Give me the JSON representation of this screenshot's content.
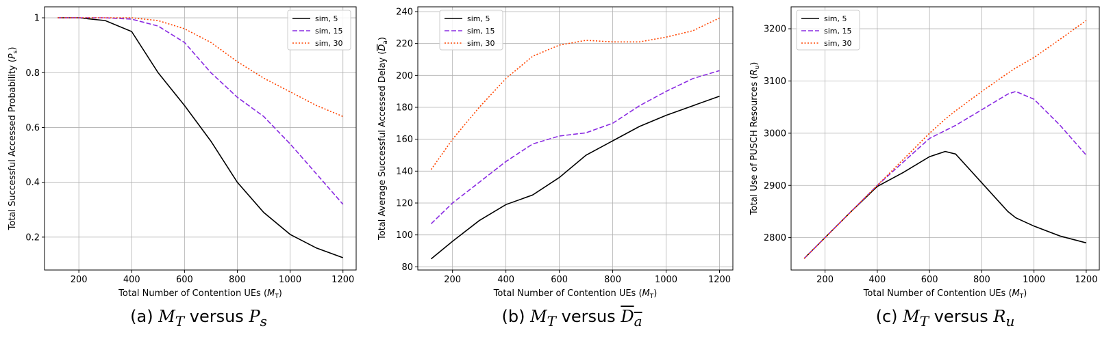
{
  "chart_data": [
    {
      "type": "line",
      "xlabel": "Total Number of Contention UEs (M_T)",
      "ylabel": "Total Successful Accessed Probability (P_s)",
      "caption": "(a) M_T versus P_s",
      "xlim": [
        70,
        1250
      ],
      "ylim": [
        0.08,
        1.04
      ],
      "xticks": [
        200,
        400,
        600,
        800,
        1000,
        1200
      ],
      "yticks": [
        0.2,
        0.4,
        0.6,
        0.8,
        1.0
      ],
      "grid": true,
      "legend_position": "top-right",
      "x": [
        120,
        200,
        300,
        400,
        500,
        600,
        700,
        800,
        900,
        1000,
        1100,
        1200
      ],
      "series": [
        {
          "name": "sim, 5",
          "color": "#000000",
          "dash": "solid",
          "values": [
            1.0,
            1.0,
            0.99,
            0.95,
            0.8,
            0.68,
            0.55,
            0.4,
            0.29,
            0.21,
            0.16,
            0.125
          ]
        },
        {
          "name": "sim, 15",
          "color": "#8a2be2",
          "dash": "dashed",
          "values": [
            1.0,
            1.0,
            1.0,
            0.995,
            0.97,
            0.91,
            0.8,
            0.71,
            0.64,
            0.54,
            0.43,
            0.32
          ]
        },
        {
          "name": "sim, 30",
          "color": "#ff4500",
          "dash": "dotted",
          "values": [
            1.0,
            1.0,
            1.0,
            1.0,
            0.99,
            0.96,
            0.91,
            0.84,
            0.78,
            0.73,
            0.68,
            0.64
          ]
        }
      ]
    },
    {
      "type": "line",
      "xlabel": "Total Number of Contention UEs (M_T)",
      "ylabel": "Total Average Successful Accessed Delay (D_a)",
      "caption": "(b) M_T versus D_a",
      "xlim": [
        70,
        1250
      ],
      "ylim": [
        78,
        243
      ],
      "xticks": [
        200,
        400,
        600,
        800,
        1000,
        1200
      ],
      "yticks": [
        80,
        100,
        120,
        140,
        160,
        180,
        200,
        220,
        240
      ],
      "grid": true,
      "legend_position": "top-left",
      "x": [
        120,
        200,
        300,
        400,
        500,
        600,
        700,
        800,
        900,
        1000,
        1100,
        1200
      ],
      "series": [
        {
          "name": "sim, 5",
          "color": "#000000",
          "dash": "solid",
          "values": [
            85,
            96,
            109,
            119,
            125,
            136,
            150,
            159,
            168,
            175,
            181,
            187
          ]
        },
        {
          "name": "sim, 15",
          "color": "#8a2be2",
          "dash": "dashed",
          "values": [
            107,
            120,
            133,
            146,
            157,
            162,
            164,
            170,
            181,
            190,
            198,
            203
          ]
        },
        {
          "name": "sim, 30",
          "color": "#ff4500",
          "dash": "dotted",
          "values": [
            141,
            160,
            180,
            198,
            212,
            219,
            222,
            221,
            221,
            224,
            228,
            236
          ]
        }
      ]
    },
    {
      "type": "line",
      "xlabel": "Total Number of Contention UEs (M_T)",
      "ylabel": "Total Use of PUSCH Resources (R_u)",
      "caption": "(c) M_T versus R_u",
      "xlim": [
        70,
        1250
      ],
      "ylim": [
        2738,
        3242
      ],
      "xticks": [
        200,
        400,
        600,
        800,
        1000,
        1200
      ],
      "yticks": [
        2800,
        2900,
        3000,
        3100,
        3200
      ],
      "grid": true,
      "legend_position": "top-left",
      "x": [
        120,
        200,
        300,
        400,
        500,
        600,
        660,
        700,
        800,
        900,
        930,
        1000,
        1100,
        1200
      ],
      "series": [
        {
          "name": "sim, 5",
          "color": "#000000",
          "dash": "solid",
          "values": [
            2760,
            2800,
            2850,
            2898,
            2925,
            2955,
            2965,
            2960,
            2905,
            2850,
            2838,
            2822,
            2803,
            2790
          ]
        },
        {
          "name": "sim, 15",
          "color": "#8a2be2",
          "dash": "dashed",
          "values": [
            2760,
            2800,
            2850,
            2900,
            2945,
            2990,
            3005,
            3015,
            3045,
            3075,
            3080,
            3065,
            3015,
            2958
          ]
        },
        {
          "name": "sim, 30",
          "color": "#ff4500",
          "dash": "dotted",
          "values": [
            2760,
            2800,
            2850,
            2900,
            2950,
            3000,
            3027,
            3043,
            3080,
            3115,
            3125,
            3145,
            3180,
            3216
          ]
        }
      ]
    }
  ]
}
